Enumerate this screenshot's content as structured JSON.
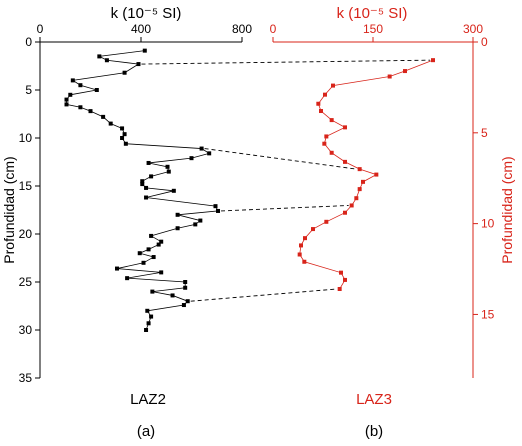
{
  "chart_data": [
    {
      "type": "line",
      "panel_label": "(a)",
      "sample_label": "LAZ2",
      "title": "k (10⁻⁵ SI)",
      "xlabel": "k (10⁻⁵ SI)",
      "ylabel": "Profundidad (cm)",
      "xlim": [
        0,
        800
      ],
      "ylim": [
        35,
        0
      ],
      "x_ticks": [
        "0",
        "400",
        "800"
      ],
      "y_ticks": [
        "0",
        "5",
        "10",
        "15",
        "20",
        "25",
        "30",
        "35"
      ],
      "color": "#000000",
      "marker": "square",
      "series": [
        {
          "x": [
            415,
            235,
            265,
            390,
            335,
            130,
            160,
            225,
            120,
            105,
            105,
            160,
            200,
            250,
            280,
            325,
            335,
            325,
            340,
            640,
            670,
            600,
            430,
            505,
            510,
            440,
            405,
            405,
            420,
            530,
            420,
            695,
            705,
            545,
            635,
            615,
            545,
            440,
            480,
            470,
            430,
            395,
            450,
            410,
            305,
            480,
            345,
            575,
            575,
            445,
            525,
            585,
            570,
            425,
            440,
            430,
            420
          ],
          "y": [
            0.9,
            1.5,
            1.9,
            2.3,
            3.2,
            4.0,
            4.5,
            5.0,
            5.5,
            6.0,
            6.5,
            6.8,
            7.2,
            7.8,
            8.5,
            9.0,
            9.6,
            10.0,
            10.6,
            11.1,
            11.6,
            12.1,
            12.6,
            13.0,
            13.5,
            14.0,
            14.5,
            14.8,
            15.2,
            15.5,
            16.2,
            17.1,
            17.6,
            18.0,
            18.6,
            19.0,
            19.4,
            20.2,
            20.8,
            21.1,
            21.6,
            22.0,
            22.4,
            23.0,
            23.6,
            24.0,
            24.6,
            25.0,
            25.6,
            26.0,
            26.4,
            27.0,
            27.4,
            28.0,
            28.6,
            29.3,
            30.0
          ]
        }
      ]
    },
    {
      "type": "line",
      "panel_label": "(b)",
      "sample_label": "LAZ3",
      "title": "k (10⁻⁵ SI)",
      "xlabel": "k (10⁻⁵ SI)",
      "ylabel": "Profundidad (cm)",
      "xlim": [
        0,
        300
      ],
      "ylim": [
        18.5,
        0
      ],
      "x_ticks": [
        "0",
        "150",
        "300"
      ],
      "y_ticks": [
        "0",
        "5",
        "10",
        "15"
      ],
      "color": "#d8241a",
      "marker": "square",
      "series": [
        {
          "x": [
            240,
            198,
            175,
            90,
            78,
            68,
            72,
            88,
            108,
            80,
            77,
            88,
            108,
            130,
            155,
            135,
            130,
            125,
            118,
            108,
            80,
            60,
            48,
            42,
            40,
            47,
            102,
            108,
            100
          ],
          "y": [
            1.0,
            1.6,
            1.9,
            2.4,
            2.9,
            3.4,
            3.8,
            4.3,
            4.7,
            5.2,
            5.6,
            6.1,
            6.6,
            7.0,
            7.3,
            7.7,
            8.1,
            8.6,
            9.0,
            9.4,
            9.9,
            10.3,
            10.8,
            11.2,
            11.7,
            12.1,
            12.7,
            13.1,
            13.6
          ]
        }
      ]
    }
  ],
  "correlation_pairs": [
    {
      "a_depth": 2.3,
      "b_point": 0
    },
    {
      "a_depth": 11.1,
      "b_point": 13
    },
    {
      "a_depth": 17.6,
      "b_point": 18
    },
    {
      "a_depth": 27.0,
      "b_point": 28
    }
  ],
  "colors": {
    "a": "#000000",
    "b": "#d8241a"
  }
}
